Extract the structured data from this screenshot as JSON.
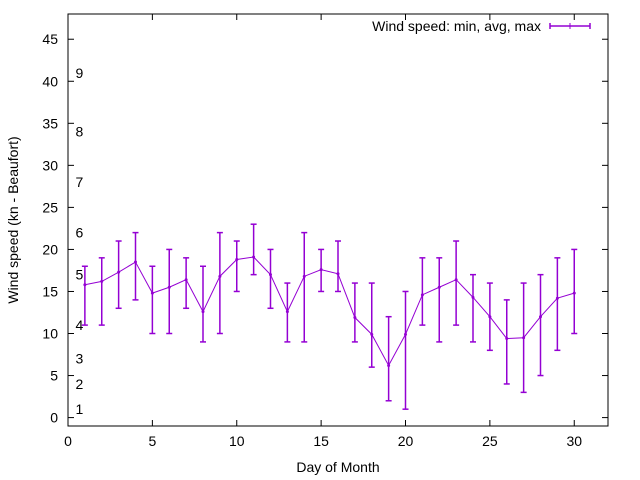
{
  "chart_data": {
    "type": "line",
    "title": "",
    "xlabel": "Day of Month",
    "ylabel": "Wind speed (kn - Beaufort)",
    "xlim": [
      0,
      32
    ],
    "ylim": [
      -1,
      48
    ],
    "xticks": [
      0,
      5,
      10,
      15,
      20,
      25,
      30
    ],
    "yticks": [
      0,
      5,
      10,
      15,
      20,
      25,
      30,
      35,
      40,
      45
    ],
    "grid": false,
    "legend": {
      "position": "top-right",
      "entries": [
        "Wind speed: min, avg, max"
      ]
    },
    "color": "#9400d3",
    "series": [
      {
        "name": "Wind speed: min, avg, max",
        "x": [
          1,
          2,
          3,
          4,
          5,
          6,
          7,
          8,
          9,
          10,
          11,
          12,
          13,
          14,
          15,
          16,
          17,
          18,
          19,
          20,
          21,
          22,
          23,
          24,
          25,
          26,
          27,
          28,
          29,
          30
        ],
        "avg": [
          15.8,
          16.2,
          17.3,
          18.5,
          14.8,
          15.5,
          16.4,
          12.6,
          16.8,
          18.8,
          19.1,
          17.0,
          12.6,
          16.8,
          17.6,
          17.1,
          11.9,
          9.9,
          6.2,
          9.9,
          14.6,
          15.5,
          16.4,
          14.3,
          12.0,
          9.4,
          9.5,
          12.0,
          14.2,
          14.8
        ],
        "min": [
          11,
          11,
          13,
          14,
          10,
          10,
          13,
          9,
          10,
          15,
          17,
          13,
          9,
          9,
          15,
          15,
          9,
          6,
          2,
          1,
          11,
          9,
          11,
          9,
          8,
          4,
          3,
          5,
          8,
          10
        ],
        "max": [
          18,
          19,
          21,
          22,
          18,
          20,
          19,
          18,
          22,
          21,
          23,
          20,
          16,
          22,
          20,
          21,
          16,
          16,
          12,
          15,
          19,
          19,
          21,
          17,
          16,
          14,
          16,
          17,
          19,
          20
        ]
      }
    ],
    "annotations": [
      {
        "text": "1",
        "x": 0.5,
        "y": 1
      },
      {
        "text": "2",
        "x": 0.5,
        "y": 4
      },
      {
        "text": "3",
        "x": 0.5,
        "y": 7
      },
      {
        "text": "4",
        "x": 0.5,
        "y": 11
      },
      {
        "text": "5",
        "x": 0.5,
        "y": 17
      },
      {
        "text": "6",
        "x": 0.5,
        "y": 22
      },
      {
        "text": "7",
        "x": 0.5,
        "y": 28
      },
      {
        "text": "8",
        "x": 0.5,
        "y": 34
      },
      {
        "text": "9",
        "x": 0.5,
        "y": 41
      }
    ]
  }
}
